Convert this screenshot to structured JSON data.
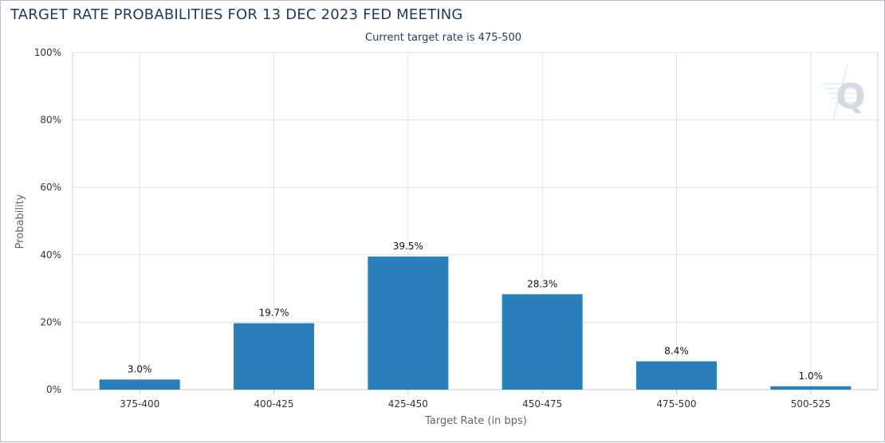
{
  "title": "TARGET RATE PROBABILITIES FOR 13 DEC 2023 FED MEETING",
  "subtitle": "Current target rate is 475-500",
  "logo_text": "Q",
  "colors": {
    "bar": "#2b80bb",
    "grid": "#e3e3e3",
    "title": "#1f3a5f"
  },
  "chart_data": {
    "type": "bar",
    "categories": [
      "375-400",
      "400-425",
      "425-450",
      "450-475",
      "475-500",
      "500-525"
    ],
    "values": [
      3.0,
      19.7,
      39.5,
      28.3,
      8.4,
      1.0
    ],
    "data_labels": [
      "3.0%",
      "19.7%",
      "39.5%",
      "28.3%",
      "8.4%",
      "1.0%"
    ],
    "ylim": [
      0,
      100
    ],
    "y_ticks": [
      0,
      20,
      40,
      60,
      80,
      100
    ],
    "y_tick_labels": [
      "0%",
      "20%",
      "40%",
      "60%",
      "80%",
      "100%"
    ],
    "xlabel": "Target Rate (in bps)",
    "ylabel": "Probability",
    "grid": true
  }
}
